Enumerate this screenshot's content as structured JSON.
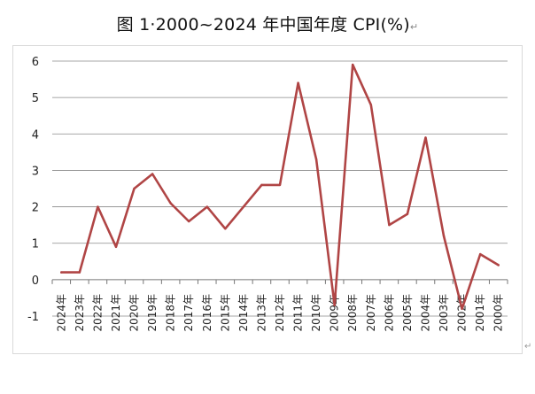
{
  "chart_data": {
    "type": "line",
    "title": "图 1·2000~2024 年中国年度 CPI(%)",
    "xlabel": "",
    "ylabel": "",
    "ylim": [
      -1,
      6
    ],
    "yticks": [
      -1,
      0,
      1,
      2,
      3,
      4,
      5,
      6
    ],
    "grid": true,
    "legend": "none",
    "categories": [
      "2024年",
      "2023年",
      "2022年",
      "2021年",
      "2020年",
      "2019年",
      "2018年",
      "2017年",
      "2016年",
      "2015年",
      "2014年",
      "2013年",
      "2012年",
      "2011年",
      "2010年",
      "2009年",
      "2008年",
      "2007年",
      "2006年",
      "2005年",
      "2004年",
      "2003年",
      "2002年",
      "2001年",
      "2000年"
    ],
    "series": [
      {
        "values": [
          0.2,
          0.2,
          2.0,
          0.9,
          2.5,
          2.9,
          2.1,
          1.6,
          2.0,
          1.4,
          2.0,
          2.6,
          2.6,
          5.4,
          3.3,
          -0.7,
          5.9,
          4.8,
          1.5,
          1.8,
          3.9,
          1.2,
          -0.8,
          0.7,
          0.4
        ],
        "color": "#b04545"
      }
    ]
  },
  "marks": {
    "return_symbol": "↵"
  }
}
